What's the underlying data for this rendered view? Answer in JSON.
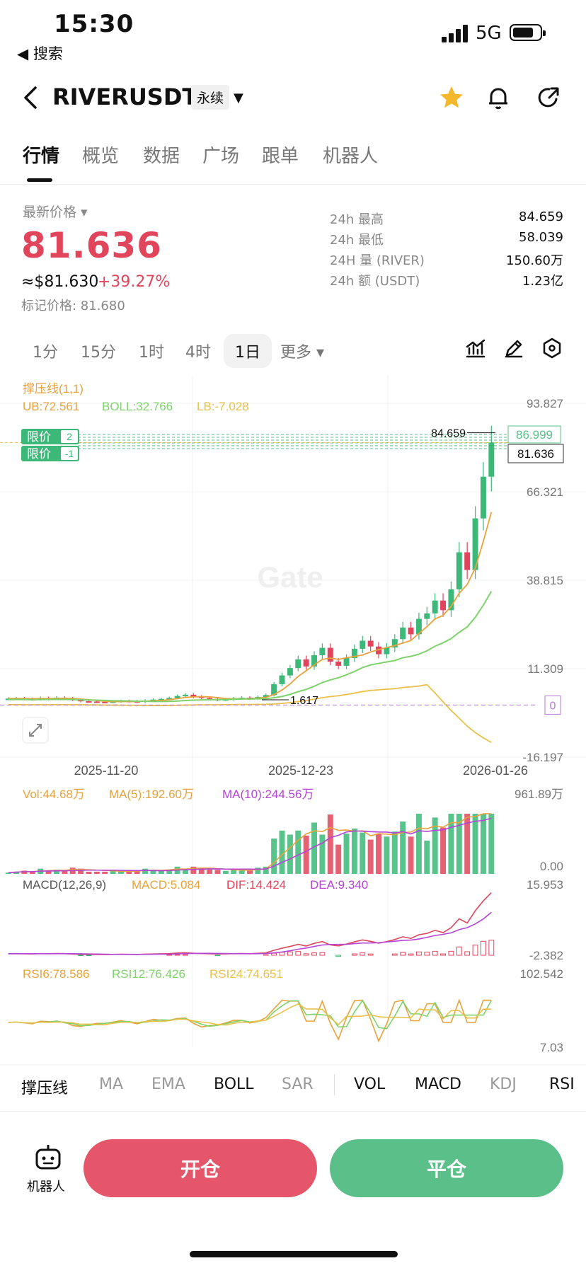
{
  "status": {
    "time": "15:30",
    "back_label": "◀ 搜索",
    "network": "5G"
  },
  "header": {
    "symbol": "RIVERUSDT",
    "tag": "永续"
  },
  "tabs": [
    "行情",
    "概览",
    "数据",
    "广场",
    "跟单",
    "机器人"
  ],
  "price": {
    "label": "最新价格 ▾",
    "last": "81.636",
    "usd": "≈$81.630",
    "change": "+39.27%",
    "mark": "标记价格: 81.680"
  },
  "stats": [
    {
      "k": "24h  最高",
      "v": "84.659"
    },
    {
      "k": "24h  最低",
      "v": "58.039"
    },
    {
      "k": "24H  量 (RIVER)",
      "v": "150.60万"
    },
    {
      "k": "24h  额 (USDT)",
      "v": "1.23亿"
    }
  ],
  "timeframes": [
    "1分",
    "15分",
    "1时",
    "4时",
    "1日",
    "更多 ▾"
  ],
  "timeframe_selected": "1日",
  "chart_data": {
    "type": "candlestick",
    "indicator_title": "撑压线(1,1)",
    "boll": {
      "ub": "UB:72.561",
      "boll": "BOLL:32.766",
      "lb": "LB:-7.028"
    },
    "price_axis": [
      "93.827",
      "66.321",
      "38.815",
      "11.309",
      "-16.197"
    ],
    "x_ticks": [
      "2025-11-20",
      "2025-12-23",
      "2026-01-26"
    ],
    "high_label": "84.659",
    "low_label": "1.617",
    "current_tag": "81.636",
    "limit_price": "86.999",
    "zero_tag": "0",
    "limit_labels": [
      {
        "text": "限价",
        "count": "2"
      },
      {
        "text": "限价",
        "count": "-1"
      }
    ],
    "watermark": "Gate",
    "candles_close": [
      2,
      2.1,
      1.9,
      1.8,
      2.2,
      2.0,
      2.3,
      2.1,
      1.6,
      1.2,
      1.1,
      1.0,
      0.9,
      1.1,
      1.3,
      1.2,
      1.0,
      1.4,
      1.7,
      1.9,
      2.2,
      2.8,
      3.2,
      2.6,
      2.2,
      1.9,
      1.617,
      1.8,
      2.1,
      2.3,
      2.0,
      2.5,
      3.1,
      6.5,
      9.2,
      11.5,
      14.2,
      12.0,
      15.5,
      17.8,
      13.5,
      12.2,
      14.6,
      17.5,
      20.0,
      18.2,
      15.8,
      17.9,
      20.5,
      24.1,
      22.0,
      26.8,
      28.5,
      32.5,
      29.5,
      36.0,
      47.5,
      42.0,
      58.039,
      71.0,
      81.636
    ],
    "volume": {
      "vol": "Vol:44.68万",
      "ma5": "MA(5):192.60万",
      "ma10": "MA(10):244.56万",
      "axis_top": "961.89万",
      "axis_bottom": "0.00"
    },
    "macd": {
      "label": "MACD(12,26,9)",
      "macd": "MACD:5.084",
      "dif": "DIF:14.424",
      "dea": "DEA:9.340",
      "axis_top": "15.953",
      "axis_bottom": "-2.382"
    },
    "rsi": {
      "rsi6": "RSI6:78.586",
      "rsi12": "RSI12:76.426",
      "rsi24": "RSI24:74.651",
      "axis_top": "102.542",
      "axis_bottom": "7.03"
    }
  },
  "indicators": [
    "撑压线",
    "MA",
    "EMA",
    "BOLL",
    "SAR",
    "VOL",
    "MACD",
    "KDJ",
    "RSI"
  ],
  "indicators_active": [
    "撑压线",
    "BOLL",
    "VOL",
    "MACD",
    "RSI"
  ],
  "bottom": {
    "robot": "机器人",
    "open": "开仓",
    "close": "平仓"
  },
  "colors": {
    "up": "#3cb878",
    "down": "#e0455c",
    "open_btn": "#e5566a",
    "close_btn": "#5bbf8a"
  }
}
